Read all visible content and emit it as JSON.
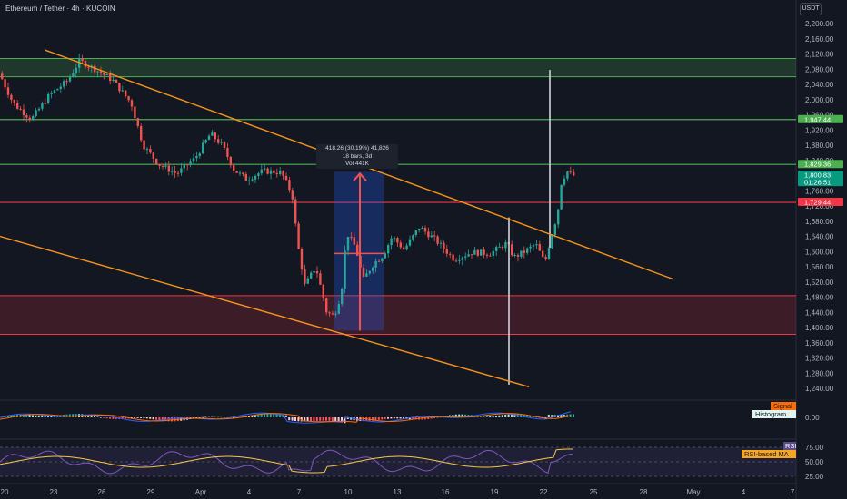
{
  "header": {
    "title": "Ethereum / Tether · 4h · KUCOIN",
    "currency": "USDT"
  },
  "colors": {
    "background": "#131722",
    "bullish": "#26a69a",
    "bearish": "#ef5350",
    "trendline": "#f7931a",
    "green_zone": "#4caf50",
    "red_zone": "#f23645",
    "measure": "#2962ff"
  },
  "price_axis": {
    "ticks": [
      2200,
      2160,
      2120,
      2080,
      2040,
      2000,
      1960,
      1920,
      1880,
      1840,
      1800,
      1760,
      1720,
      1680,
      1640,
      1600,
      1560,
      1520,
      1480,
      1440,
      1400,
      1360,
      1320,
      1280,
      1240
    ],
    "tick_labels": [
      "2,200.00",
      "2,160.00",
      "2,120.00",
      "2,080.00",
      "2,040.00",
      "2,000.00",
      "1,960.00",
      "1,920.00",
      "1,880.00",
      "1,840.00",
      "1,800.00",
      "1,760.00",
      "1,720.00",
      "1,680.00",
      "1,640.00",
      "1,600.00",
      "1,560.00",
      "1,520.00",
      "1,480.00",
      "1,440.00",
      "1,400.00",
      "1,360.00",
      "1,320.00",
      "1,280.00",
      "1,240.00"
    ]
  },
  "price_tags": [
    {
      "label": "1,947.44",
      "value": 1947.44,
      "kind": "green"
    },
    {
      "label": "1,829.36",
      "value": 1829.36,
      "kind": "green"
    },
    {
      "label": "1,800.83",
      "value": 1800.83,
      "kind": "current",
      "sub": "01:26:51"
    },
    {
      "label": "1,729.44",
      "value": 1729.44,
      "kind": "red"
    }
  ],
  "time_axis": {
    "labels": [
      "20",
      "23",
      "26",
      "29",
      "Apr",
      "4",
      "7",
      "10",
      "13",
      "16",
      "19",
      "22",
      "25",
      "28",
      "May",
      "4",
      "7"
    ]
  },
  "zones": [
    {
      "name": "resistance-zone",
      "from": 2060,
      "to": 2108,
      "kind": "green"
    },
    {
      "name": "support-zone",
      "from": 1382,
      "to": 1484,
      "kind": "red"
    }
  ],
  "horizontal_levels": [
    {
      "value": 1947.44,
      "kind": "green"
    },
    {
      "value": 1829.36,
      "kind": "green"
    },
    {
      "value": 1729.44,
      "kind": "red"
    }
  ],
  "measure_tool": {
    "line1": "418.26 (30.19%) 41,826",
    "line2": "18 bars, 3d",
    "line3": "Vol 441K"
  },
  "macd": {
    "label_signal": "Signal",
    "label_histogram": "Histogram",
    "tick_label": "0.00"
  },
  "rsi": {
    "label_rsi": "RSI",
    "label_ma": "RSI-based MA",
    "tick_labels": [
      "75.00",
      "50.00",
      "25.00"
    ]
  },
  "chart_data": {
    "type": "candlestick",
    "symbol": "ETH/USDT",
    "interval": "4h",
    "exchange": "KUCOIN",
    "ylim": [
      1220,
      2220
    ],
    "anchors": [
      {
        "x": 0,
        "p": 2068
      },
      {
        "x": 15,
        "p": 1990
      },
      {
        "x": 35,
        "p": 1948
      },
      {
        "x": 55,
        "p": 2012
      },
      {
        "x": 75,
        "p": 2050
      },
      {
        "x": 88,
        "p": 2102
      },
      {
        "x": 105,
        "p": 2080
      },
      {
        "x": 125,
        "p": 2050
      },
      {
        "x": 145,
        "p": 1990
      },
      {
        "x": 158,
        "p": 1880
      },
      {
        "x": 175,
        "p": 1830
      },
      {
        "x": 195,
        "p": 1805
      },
      {
        "x": 215,
        "p": 1845
      },
      {
        "x": 232,
        "p": 1910
      },
      {
        "x": 245,
        "p": 1880
      },
      {
        "x": 258,
        "p": 1815
      },
      {
        "x": 272,
        "p": 1790
      },
      {
        "x": 290,
        "p": 1812
      },
      {
        "x": 310,
        "p": 1808
      },
      {
        "x": 322,
        "p": 1750
      },
      {
        "x": 328,
        "p": 1620
      },
      {
        "x": 336,
        "p": 1510
      },
      {
        "x": 348,
        "p": 1560
      },
      {
        "x": 360,
        "p": 1440
      },
      {
        "x": 368,
        "p": 1430
      },
      {
        "x": 376,
        "p": 1490
      },
      {
        "x": 382,
        "p": 1650
      },
      {
        "x": 392,
        "p": 1610
      },
      {
        "x": 400,
        "p": 1525
      },
      {
        "x": 412,
        "p": 1570
      },
      {
        "x": 422,
        "p": 1590
      },
      {
        "x": 432,
        "p": 1640
      },
      {
        "x": 445,
        "p": 1605
      },
      {
        "x": 462,
        "p": 1665
      },
      {
        "x": 480,
        "p": 1630
      },
      {
        "x": 500,
        "p": 1580
      },
      {
        "x": 520,
        "p": 1598
      },
      {
        "x": 540,
        "p": 1595
      },
      {
        "x": 558,
        "p": 1622
      },
      {
        "x": 566,
        "p": 1585
      },
      {
        "x": 578,
        "p": 1600
      },
      {
        "x": 590,
        "p": 1620
      },
      {
        "x": 600,
        "p": 1570
      },
      {
        "x": 607,
        "p": 1640
      },
      {
        "x": 614,
        "p": 1700
      },
      {
        "x": 618,
        "p": 1780
      },
      {
        "x": 624,
        "p": 1812
      },
      {
        "x": 630,
        "p": 1800
      }
    ],
    "trendlines": [
      {
        "name": "upper-channel",
        "from": {
          "x": 50,
          "p": 2130
        },
        "to": {
          "x": 740,
          "p": 1528
        }
      },
      {
        "name": "lower-channel",
        "from": {
          "x": 0,
          "p": 1640
        },
        "to": {
          "x": 582,
          "p": 1244
        }
      }
    ],
    "wicks": [
      {
        "x": 560,
        "top": 1690,
        "bottom": 1250
      },
      {
        "x": 605,
        "top": 2078,
        "bottom": 1610
      }
    ]
  }
}
